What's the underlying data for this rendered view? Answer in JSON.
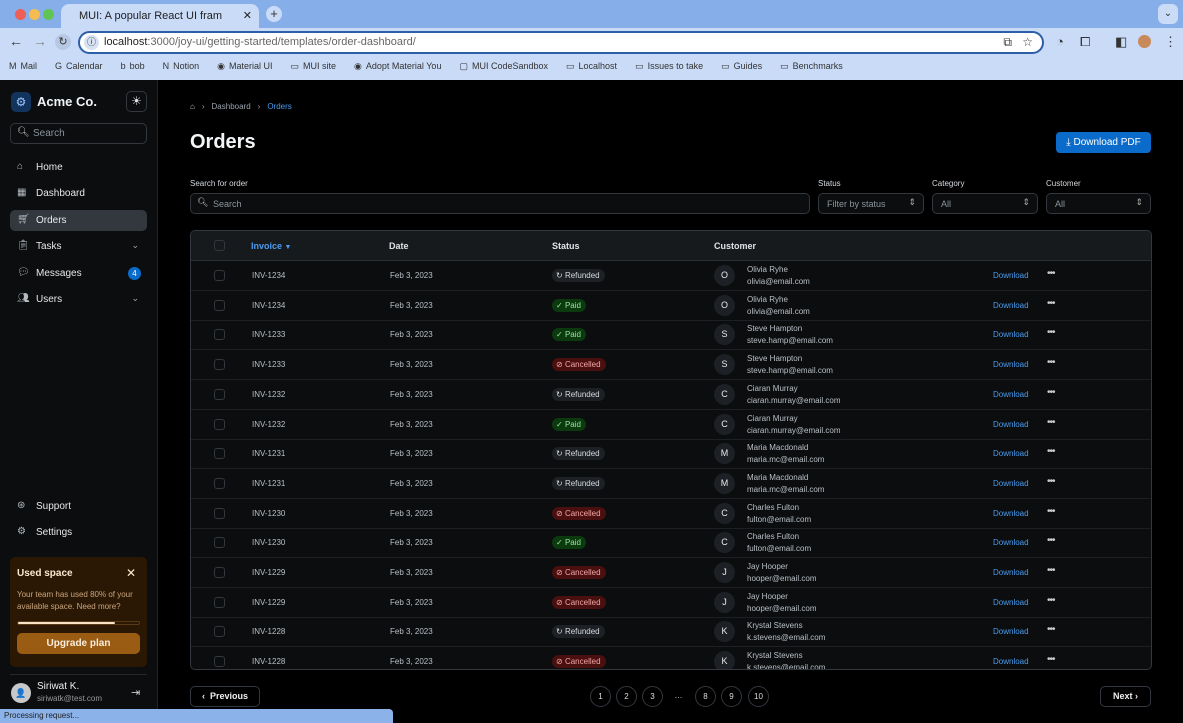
{
  "browser": {
    "tab_title": "MUI: A popular React UI fram",
    "url_host": "localhost",
    "url_path": ":3000/joy-ui/getting-started/templates/order-dashboard/",
    "bookmarks": [
      "Mail",
      "Calendar",
      "bob",
      "Notion",
      "Material UI",
      "MUI site",
      "Adopt Material You",
      "MUI CodeSandbox",
      "Localhost",
      "Issues to take",
      "Guides",
      "Benchmarks"
    ],
    "status_text": "Processing request..."
  },
  "sidebar": {
    "brand": "Acme Co.",
    "search_placeholder": "Search",
    "items": [
      {
        "label": "Home",
        "icon": "home-icon"
      },
      {
        "label": "Dashboard",
        "icon": "dashboard-icon"
      },
      {
        "label": "Orders",
        "icon": "cart-icon",
        "selected": true
      },
      {
        "label": "Tasks",
        "icon": "clipboard-icon"
      },
      {
        "label": "Messages",
        "icon": "chat-icon",
        "badge": "4"
      },
      {
        "label": "Users",
        "icon": "users-icon"
      }
    ],
    "bottom_items": [
      {
        "label": "Support"
      },
      {
        "label": "Settings"
      }
    ],
    "card": {
      "title": "Used space",
      "text": "Your team has used 80% of your available space. Need more?",
      "progress": 0.8,
      "button": "Upgrade plan"
    },
    "user": {
      "name": "Siriwat K.",
      "email": "siriwatk@test.com"
    }
  },
  "main": {
    "breadcrumb": [
      "Dashboard",
      "Orders"
    ],
    "title": "Orders",
    "download_pdf": "Download PDF",
    "filters": {
      "search_label": "Search for order",
      "search_placeholder": "Search",
      "status_label": "Status",
      "status_placeholder": "Filter by status",
      "category_label": "Category",
      "category_value": "All",
      "customer_label": "Customer",
      "customer_value": "All"
    },
    "table": {
      "headers": [
        "Invoice",
        "Date",
        "Status",
        "Customer"
      ],
      "download_label": "Download",
      "rows": [
        [
          "INV-1234",
          "Feb 3, 2023",
          "Refunded",
          "O",
          "Olivia Ryhe",
          "olivia@email.com"
        ],
        [
          "INV-1234",
          "Feb 3, 2023",
          "Paid",
          "O",
          "Olivia Ryhe",
          "olivia@email.com"
        ],
        [
          "INV-1233",
          "Feb 3, 2023",
          "Paid",
          "S",
          "Steve Hampton",
          "steve.hamp@email.com"
        ],
        [
          "INV-1233",
          "Feb 3, 2023",
          "Cancelled",
          "S",
          "Steve Hampton",
          "steve.hamp@email.com"
        ],
        [
          "INV-1232",
          "Feb 3, 2023",
          "Refunded",
          "C",
          "Ciaran Murray",
          "ciaran.murray@email.com"
        ],
        [
          "INV-1232",
          "Feb 3, 2023",
          "Paid",
          "C",
          "Ciaran Murray",
          "ciaran.murray@email.com"
        ],
        [
          "INV-1231",
          "Feb 3, 2023",
          "Refunded",
          "M",
          "Maria Macdonald",
          "maria.mc@email.com"
        ],
        [
          "INV-1231",
          "Feb 3, 2023",
          "Refunded",
          "M",
          "Maria Macdonald",
          "maria.mc@email.com"
        ],
        [
          "INV-1230",
          "Feb 3, 2023",
          "Cancelled",
          "C",
          "Charles Fulton",
          "fulton@email.com"
        ],
        [
          "INV-1230",
          "Feb 3, 2023",
          "Paid",
          "C",
          "Charles Fulton",
          "fulton@email.com"
        ],
        [
          "INV-1229",
          "Feb 3, 2023",
          "Cancelled",
          "J",
          "Jay Hooper",
          "hooper@email.com"
        ],
        [
          "INV-1229",
          "Feb 3, 2023",
          "Cancelled",
          "J",
          "Jay Hooper",
          "hooper@email.com"
        ],
        [
          "INV-1228",
          "Feb 3, 2023",
          "Refunded",
          "K",
          "Krystal Stevens",
          "k.stevens@email.com"
        ],
        [
          "INV-1228",
          "Feb 3, 2023",
          "Cancelled",
          "K",
          "Krystal Stevens",
          "k.stevens@email.com"
        ]
      ]
    },
    "pagination": {
      "previous": "Previous",
      "next": "Next",
      "pages": [
        "1",
        "2",
        "3",
        "…",
        "8",
        "9",
        "10"
      ]
    }
  }
}
